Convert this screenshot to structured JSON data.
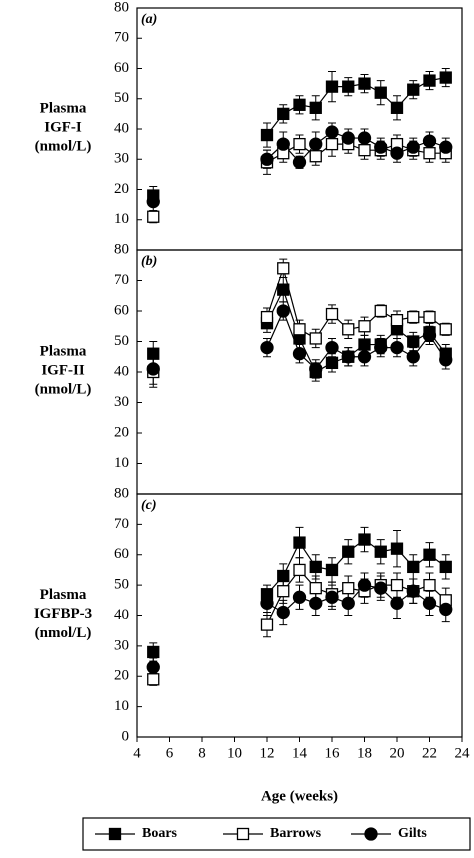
{
  "chart_data": [
    {
      "type": "line",
      "panel_label": "(a)",
      "ylabel": [
        "Plasma",
        "IGF-I",
        "(nmol/L)"
      ],
      "x": [
        5,
        6,
        7,
        8,
        9,
        10,
        11,
        12,
        13,
        14,
        15,
        16,
        17,
        18,
        19,
        20,
        21,
        22,
        23
      ],
      "xlim": [
        4,
        24
      ],
      "ylim": [
        0,
        80
      ],
      "yticks": [
        10,
        20,
        30,
        40,
        50,
        60,
        70,
        80
      ],
      "series": [
        {
          "marker": "square",
          "filled": true,
          "values": [
            18,
            null,
            null,
            null,
            null,
            null,
            null,
            38,
            45,
            48,
            47,
            54,
            54,
            55,
            52,
            47,
            53,
            56,
            57
          ],
          "errors": [
            3,
            null,
            null,
            null,
            null,
            null,
            null,
            4,
            3,
            3,
            4,
            5,
            3,
            3,
            4,
            4,
            3,
            3,
            3
          ]
        },
        {
          "marker": "square",
          "filled": false,
          "values": [
            11,
            null,
            null,
            null,
            null,
            null,
            null,
            29,
            32,
            35,
            31,
            35,
            35,
            33,
            33,
            35,
            33,
            32,
            32
          ],
          "errors": [
            2,
            null,
            null,
            null,
            null,
            null,
            null,
            4,
            3,
            3,
            3,
            4,
            3,
            3,
            3,
            3,
            3,
            3,
            3
          ]
        },
        {
          "marker": "circle",
          "filled": true,
          "values": [
            16,
            null,
            null,
            null,
            null,
            null,
            null,
            30,
            35,
            29,
            35,
            39,
            37,
            37,
            34,
            32,
            34,
            36,
            34
          ],
          "errors": [
            3,
            null,
            null,
            null,
            null,
            null,
            null,
            3,
            4,
            2,
            4,
            3,
            3,
            3,
            3,
            3,
            3,
            3,
            3
          ]
        }
      ]
    },
    {
      "type": "line",
      "panel_label": "(b)",
      "ylabel": [
        "Plasma",
        "IGF-II",
        "(nmol/L)"
      ],
      "x": [
        5,
        6,
        7,
        8,
        9,
        10,
        11,
        12,
        13,
        14,
        15,
        16,
        17,
        18,
        19,
        20,
        21,
        22,
        23
      ],
      "xlim": [
        4,
        24
      ],
      "ylim": [
        0,
        80
      ],
      "yticks": [
        10,
        20,
        30,
        40,
        50,
        60,
        70,
        80
      ],
      "series": [
        {
          "marker": "square",
          "filled": true,
          "values": [
            46,
            null,
            null,
            null,
            null,
            null,
            null,
            56,
            67,
            51,
            40,
            43,
            45,
            49,
            49,
            54,
            50,
            53,
            46
          ],
          "errors": [
            4,
            null,
            null,
            null,
            null,
            null,
            null,
            3,
            4,
            4,
            3,
            3,
            3,
            3,
            3,
            3,
            3,
            3,
            3
          ]
        },
        {
          "marker": "square",
          "filled": false,
          "values": [
            40,
            null,
            null,
            null,
            null,
            null,
            null,
            58,
            74,
            54,
            51,
            59,
            54,
            55,
            60,
            57,
            58,
            58,
            54
          ],
          "errors": [
            5,
            null,
            null,
            null,
            null,
            null,
            null,
            3,
            3,
            3,
            3,
            3,
            3,
            3,
            2,
            3,
            2,
            2,
            2
          ]
        },
        {
          "marker": "circle",
          "filled": true,
          "values": [
            41,
            null,
            null,
            null,
            null,
            null,
            null,
            48,
            60,
            46,
            41,
            48,
            45,
            45,
            48,
            48,
            45,
            52,
            44
          ],
          "errors": [
            5,
            null,
            null,
            null,
            null,
            null,
            null,
            3,
            3,
            3,
            3,
            3,
            3,
            3,
            3,
            3,
            3,
            3,
            3
          ]
        }
      ]
    },
    {
      "type": "line",
      "panel_label": "(c)",
      "ylabel": [
        "Plasma",
        "IGFBP-3",
        "(nmol/L)"
      ],
      "x": [
        5,
        6,
        7,
        8,
        9,
        10,
        11,
        12,
        13,
        14,
        15,
        16,
        17,
        18,
        19,
        20,
        21,
        22,
        23
      ],
      "xlim": [
        4,
        24
      ],
      "ylim": [
        0,
        80
      ],
      "yticks": [
        0,
        10,
        20,
        30,
        40,
        50,
        60,
        70,
        80
      ],
      "xticks": [
        4,
        6,
        8,
        10,
        12,
        14,
        16,
        18,
        20,
        22,
        24
      ],
      "xlabel": "Age (weeks)",
      "series": [
        {
          "name": "Boars",
          "marker": "square",
          "filled": true,
          "values": [
            28,
            null,
            null,
            null,
            null,
            null,
            null,
            47,
            53,
            64,
            56,
            55,
            61,
            65,
            61,
            62,
            56,
            60,
            56
          ],
          "errors": [
            3,
            null,
            null,
            null,
            null,
            null,
            null,
            3,
            4,
            5,
            4,
            4,
            4,
            4,
            4,
            6,
            4,
            4,
            4
          ]
        },
        {
          "name": "Barrows",
          "marker": "square",
          "filled": false,
          "values": [
            19,
            null,
            null,
            null,
            null,
            null,
            null,
            37,
            48,
            55,
            49,
            47,
            49,
            48,
            50,
            50,
            48,
            50,
            45
          ],
          "errors": [
            2,
            null,
            null,
            null,
            null,
            null,
            null,
            4,
            4,
            4,
            4,
            4,
            4,
            4,
            4,
            4,
            4,
            4,
            4
          ]
        },
        {
          "name": "Gilts",
          "marker": "circle",
          "filled": true,
          "values": [
            23,
            null,
            null,
            null,
            null,
            null,
            null,
            44,
            41,
            46,
            44,
            46,
            44,
            50,
            49,
            44,
            48,
            44,
            42
          ],
          "errors": [
            3,
            null,
            null,
            null,
            null,
            null,
            null,
            4,
            4,
            4,
            4,
            4,
            4,
            4,
            4,
            5,
            4,
            4,
            4
          ]
        }
      ]
    }
  ]
}
